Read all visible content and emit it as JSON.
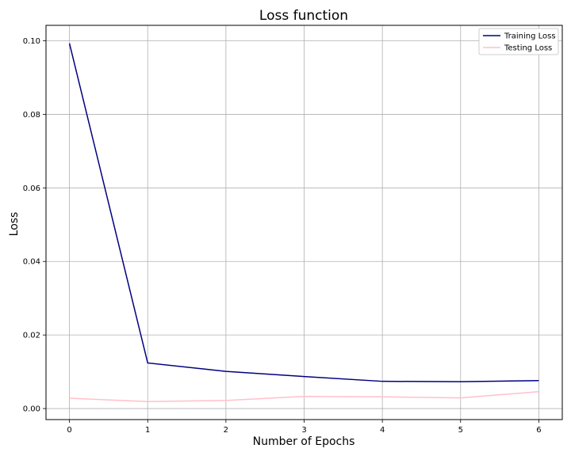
{
  "chart_data": {
    "type": "line",
    "title": "Loss function",
    "xlabel": "Number of Epochs",
    "ylabel": "Loss",
    "x": [
      0,
      1,
      2,
      3,
      4,
      5,
      6
    ],
    "xticks": [
      "0",
      "1",
      "2",
      "3",
      "4",
      "5",
      "6"
    ],
    "yticks": [
      "0.00",
      "0.02",
      "0.04",
      "0.06",
      "0.08",
      "0.10"
    ],
    "ytick_values": [
      0.0,
      0.02,
      0.04,
      0.06,
      0.08,
      0.1
    ],
    "xlim": [
      -0.3,
      6.3
    ],
    "ylim": [
      -0.003,
      0.1042
    ],
    "grid": true,
    "legend_position": "top-right",
    "series": [
      {
        "name": "Training Loss",
        "color": "#000080",
        "values": [
          0.0993,
          0.0124,
          0.0101,
          0.0087,
          0.0074,
          0.0073,
          0.0076
        ]
      },
      {
        "name": "Testing Loss",
        "color": "#ffc0cb",
        "values": [
          0.0028,
          0.0019,
          0.0022,
          0.0033,
          0.0032,
          0.0029,
          0.0046
        ]
      }
    ]
  }
}
